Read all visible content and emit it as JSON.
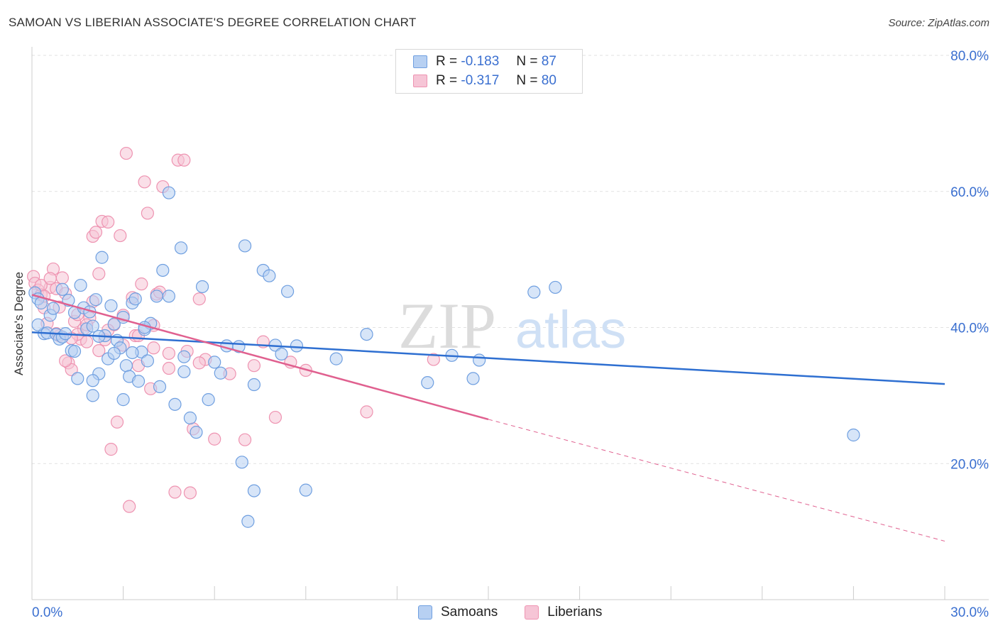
{
  "header": {
    "title": "SAMOAN VS LIBERIAN ASSOCIATE'S DEGREE CORRELATION CHART",
    "source": "Source: ZipAtlas.com"
  },
  "legend": {
    "samoans": {
      "r_label": "R =",
      "r_value": "-0.183",
      "n_label": "N =",
      "n_value": "87"
    },
    "liberians": {
      "r_label": "R =",
      "r_value": "-0.317",
      "n_label": "N =",
      "n_value": "80"
    }
  },
  "bottom_legend": {
    "samoans": "Samoans",
    "liberians": "Liberians"
  },
  "colors": {
    "samoans_fill": "#b7d0f2",
    "samoans_stroke": "#6f9fe0",
    "samoans_line": "#2e6fd1",
    "liberians_fill": "#f6c5d6",
    "liberians_stroke": "#ee93b1",
    "liberians_line": "#e0608f",
    "tick_label": "#3a6fd0",
    "grid": "#e2e2e2"
  },
  "watermark": {
    "zip": "ZIP",
    "atlas": "atlas"
  },
  "chart_data": {
    "type": "scatter",
    "title": "SAMOAN VS LIBERIAN ASSOCIATE'S DEGREE CORRELATION CHART",
    "xlabel": "",
    "ylabel": "Associate's Degree",
    "xlim": [
      0,
      30
    ],
    "ylim": [
      0,
      80
    ],
    "x_tick_labels": [
      "0.0%",
      "30.0%"
    ],
    "y_ticks": [
      20,
      40,
      60,
      80
    ],
    "y_tick_labels": [
      "20.0%",
      "40.0%",
      "60.0%",
      "80.0%"
    ],
    "grid": true,
    "legend_position": "top-center",
    "series": [
      {
        "name": "Samoans",
        "r": -0.183,
        "n": 87,
        "trend": {
          "x": [
            0,
            30
          ],
          "y": [
            39.3,
            31.7
          ],
          "style": "solid"
        },
        "points": [
          [
            0.1,
            45.1
          ],
          [
            0.2,
            44.2
          ],
          [
            0.3,
            43.6
          ],
          [
            0.4,
            39.1
          ],
          [
            0.5,
            39.2
          ],
          [
            0.6,
            41.8
          ],
          [
            0.7,
            42.8
          ],
          [
            0.8,
            39.0
          ],
          [
            0.9,
            38.3
          ],
          [
            1.0,
            38.6
          ],
          [
            1.1,
            39.1
          ],
          [
            1.2,
            44.0
          ],
          [
            1.3,
            36.6
          ],
          [
            1.4,
            42.2
          ],
          [
            1.5,
            32.5
          ],
          [
            1.6,
            46.2
          ],
          [
            1.7,
            42.9
          ],
          [
            1.8,
            39.8
          ],
          [
            1.9,
            42.3
          ],
          [
            2.0,
            30.0
          ],
          [
            2.1,
            44.1
          ],
          [
            2.2,
            33.2
          ],
          [
            2.3,
            50.3
          ],
          [
            2.4,
            38.8
          ],
          [
            2.5,
            35.4
          ],
          [
            2.6,
            43.2
          ],
          [
            2.7,
            40.5
          ],
          [
            2.8,
            38.1
          ],
          [
            2.9,
            37.0
          ],
          [
            3.0,
            29.4
          ],
          [
            3.1,
            34.4
          ],
          [
            3.2,
            32.8
          ],
          [
            3.3,
            43.6
          ],
          [
            3.4,
            44.2
          ],
          [
            3.5,
            32.1
          ],
          [
            3.6,
            36.4
          ],
          [
            3.7,
            39.7
          ],
          [
            3.8,
            35.1
          ],
          [
            3.9,
            40.6
          ],
          [
            4.1,
            44.6
          ],
          [
            4.3,
            48.4
          ],
          [
            4.5,
            44.6
          ],
          [
            4.7,
            28.7
          ],
          [
            4.9,
            51.7
          ],
          [
            5.0,
            35.7
          ],
          [
            5.2,
            26.7
          ],
          [
            5.4,
            24.6
          ],
          [
            5.6,
            46.0
          ],
          [
            5.8,
            29.4
          ],
          [
            6.0,
            34.9
          ],
          [
            6.2,
            33.3
          ],
          [
            6.4,
            37.3
          ],
          [
            6.8,
            37.2
          ],
          [
            7.0,
            52.0
          ],
          [
            7.3,
            31.6
          ],
          [
            7.6,
            48.4
          ],
          [
            7.8,
            47.6
          ],
          [
            8.0,
            37.4
          ],
          [
            8.4,
            45.3
          ],
          [
            8.7,
            37.3
          ],
          [
            9.0,
            16.1
          ],
          [
            10.0,
            35.4
          ],
          [
            11.0,
            39.0
          ],
          [
            13.0,
            31.9
          ],
          [
            13.8,
            35.9
          ],
          [
            14.5,
            32.5
          ],
          [
            14.7,
            35.2
          ],
          [
            16.5,
            45.2
          ],
          [
            17.2,
            45.9
          ],
          [
            27.0,
            24.2
          ],
          [
            4.5,
            59.8
          ],
          [
            6.9,
            20.2
          ],
          [
            7.1,
            11.5
          ],
          [
            7.3,
            16.0
          ],
          [
            8.2,
            36.1
          ],
          [
            2.2,
            38.7
          ],
          [
            3.7,
            40.0
          ],
          [
            1.0,
            45.6
          ],
          [
            2.0,
            40.2
          ],
          [
            5.0,
            33.5
          ],
          [
            3.3,
            36.3
          ],
          [
            4.2,
            31.3
          ],
          [
            2.7,
            36.2
          ],
          [
            1.4,
            36.5
          ],
          [
            3.0,
            41.5
          ],
          [
            2.0,
            32.2
          ],
          [
            0.2,
            40.4
          ]
        ]
      },
      {
        "name": "Liberians",
        "r": -0.317,
        "n": 80,
        "trend": {
          "x": [
            0,
            15
          ],
          "y": [
            44.8,
            26.5
          ],
          "style": "solid",
          "extension": {
            "x": [
              15,
              30
            ],
            "y": [
              26.5,
              8.6
            ],
            "style": "dashed"
          }
        },
        "points": [
          [
            0.05,
            47.5
          ],
          [
            0.1,
            46.5
          ],
          [
            0.2,
            45.5
          ],
          [
            0.3,
            44.8
          ],
          [
            0.4,
            42.9
          ],
          [
            0.5,
            40.6
          ],
          [
            0.6,
            45.9
          ],
          [
            0.7,
            48.6
          ],
          [
            0.8,
            45.7
          ],
          [
            0.9,
            38.8
          ],
          [
            1.0,
            47.3
          ],
          [
            1.1,
            45.0
          ],
          [
            1.2,
            34.8
          ],
          [
            1.3,
            33.8
          ],
          [
            1.4,
            40.9
          ],
          [
            1.5,
            41.9
          ],
          [
            1.6,
            38.3
          ],
          [
            1.7,
            39.8
          ],
          [
            1.8,
            37.9
          ],
          [
            1.9,
            41.4
          ],
          [
            2.0,
            53.4
          ],
          [
            2.1,
            54.0
          ],
          [
            2.2,
            47.9
          ],
          [
            2.3,
            55.6
          ],
          [
            2.4,
            38.2
          ],
          [
            2.5,
            55.5
          ],
          [
            2.6,
            22.1
          ],
          [
            2.7,
            40.4
          ],
          [
            2.8,
            26.1
          ],
          [
            2.9,
            53.5
          ],
          [
            3.0,
            37.4
          ],
          [
            3.1,
            65.6
          ],
          [
            3.2,
            13.7
          ],
          [
            3.3,
            44.4
          ],
          [
            3.4,
            38.8
          ],
          [
            3.5,
            34.4
          ],
          [
            3.6,
            46.4
          ],
          [
            3.7,
            61.4
          ],
          [
            3.8,
            56.8
          ],
          [
            3.9,
            31.0
          ],
          [
            4.0,
            37.0
          ],
          [
            4.1,
            44.9
          ],
          [
            4.2,
            45.2
          ],
          [
            4.3,
            60.7
          ],
          [
            4.5,
            34.0
          ],
          [
            4.7,
            15.8
          ],
          [
            4.8,
            64.6
          ],
          [
            5.0,
            64.6
          ],
          [
            5.1,
            36.5
          ],
          [
            5.2,
            15.7
          ],
          [
            5.3,
            25.1
          ],
          [
            5.5,
            44.2
          ],
          [
            5.7,
            35.3
          ],
          [
            6.0,
            23.6
          ],
          [
            6.5,
            33.2
          ],
          [
            7.0,
            23.5
          ],
          [
            7.3,
            34.4
          ],
          [
            7.6,
            37.9
          ],
          [
            8.0,
            26.8
          ],
          [
            8.5,
            34.9
          ],
          [
            9.0,
            33.7
          ],
          [
            11.0,
            27.6
          ],
          [
            13.2,
            35.3
          ],
          [
            0.3,
            46.2
          ],
          [
            1.5,
            39.0
          ],
          [
            2.5,
            39.6
          ],
          [
            3.5,
            38.8
          ],
          [
            4.5,
            36.2
          ],
          [
            0.8,
            39.1
          ],
          [
            1.1,
            35.1
          ],
          [
            2.2,
            36.6
          ],
          [
            0.4,
            44.6
          ],
          [
            0.6,
            47.2
          ],
          [
            1.8,
            40.4
          ],
          [
            3.0,
            41.8
          ],
          [
            4.0,
            40.3
          ],
          [
            0.9,
            43.0
          ],
          [
            1.3,
            38.4
          ],
          [
            2.0,
            43.8
          ],
          [
            5.5,
            34.8
          ]
        ]
      }
    ]
  }
}
